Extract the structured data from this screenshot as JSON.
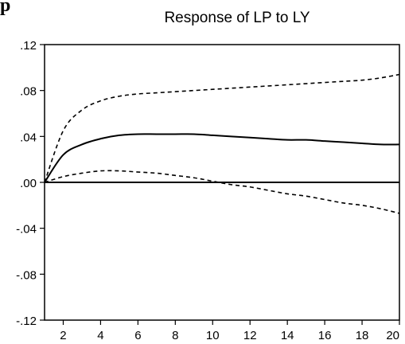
{
  "header": {
    "cropped_text": "p"
  },
  "chart_data": {
    "type": "line",
    "title": "Response of LP to LY",
    "xlabel": "",
    "ylabel": "",
    "xlim": [
      1,
      20
    ],
    "ylim": [
      -0.12,
      0.12
    ],
    "x_ticks": [
      2,
      4,
      6,
      8,
      10,
      12,
      14,
      16,
      18,
      20
    ],
    "x_tick_labels": [
      "2",
      "4",
      "6",
      "8",
      "10",
      "12",
      "14",
      "16",
      "18",
      "20"
    ],
    "y_ticks": [
      0.12,
      0.08,
      0.04,
      0.0,
      -0.04,
      -0.08,
      -0.12
    ],
    "y_tick_labels": [
      ".12",
      ".08",
      ".04",
      ".00",
      "-.04",
      "-.08",
      "-.12"
    ],
    "grid": false,
    "legend": "none",
    "zero_line": true,
    "x": [
      1,
      2,
      3,
      4,
      5,
      6,
      7,
      8,
      9,
      10,
      11,
      12,
      13,
      14,
      15,
      16,
      17,
      18,
      19,
      20
    ],
    "series": [
      {
        "style": "dashed",
        "values": [
          0.0,
          0.045,
          0.063,
          0.071,
          0.075,
          0.077,
          0.078,
          0.079,
          0.08,
          0.081,
          0.082,
          0.083,
          0.084,
          0.085,
          0.086,
          0.087,
          0.088,
          0.089,
          0.091,
          0.094
        ]
      },
      {
        "style": "solid",
        "values": [
          0.0,
          0.024,
          0.033,
          0.038,
          0.041,
          0.042,
          0.042,
          0.042,
          0.042,
          0.041,
          0.04,
          0.039,
          0.038,
          0.037,
          0.037,
          0.036,
          0.035,
          0.034,
          0.033,
          0.033
        ]
      },
      {
        "style": "dashed",
        "values": [
          0.0,
          0.005,
          0.008,
          0.01,
          0.01,
          0.009,
          0.008,
          0.006,
          0.004,
          0.001,
          -0.002,
          -0.004,
          -0.007,
          -0.01,
          -0.012,
          -0.015,
          -0.018,
          -0.02,
          -0.023,
          -0.027
        ]
      }
    ]
  }
}
